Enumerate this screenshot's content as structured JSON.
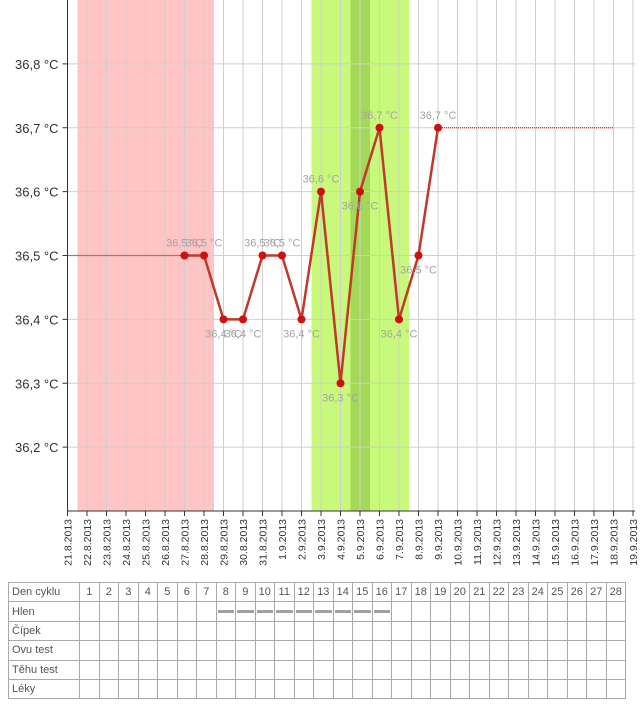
{
  "chart_data": {
    "type": "line",
    "title": "",
    "xlabel": "",
    "ylabel": "",
    "y_unit": "°C",
    "ylim": [
      36.1,
      36.9
    ],
    "y_ticks": [
      "36,2 °C",
      "36,3 °C",
      "36,4 °C",
      "36,5 °C",
      "36,6 °C",
      "36,7 °C",
      "36,8 °C"
    ],
    "y_tick_values": [
      36.2,
      36.3,
      36.4,
      36.5,
      36.6,
      36.7,
      36.8
    ],
    "x_labels": [
      "21.8.2013",
      "22.8.2013",
      "23.8.2013",
      "24.8.2013",
      "25.8.2013",
      "26.8.2013",
      "27.8.2013",
      "28.8.2013",
      "29.8.2013",
      "30.8.2013",
      "31.8.2013",
      "1.9.2013",
      "2.9.2013",
      "3.9.2013",
      "4.9.2013",
      "5.9.2013",
      "6.9.2013",
      "7.9.2013",
      "8.9.2013",
      "9.9.2013",
      "10.9.2013",
      "11.9.2013",
      "12.9.2013",
      "13.9.2013",
      "14.9.2013",
      "15.9.2013",
      "16.9.2013",
      "17.9.2013",
      "18.9.2013",
      "19.9.2013"
    ],
    "series": [
      {
        "color": "#c0392b",
        "points": [
          {
            "x": "27.8.2013",
            "y": 36.5,
            "label": "36,5 °C"
          },
          {
            "x": "28.8.2013",
            "y": 36.5,
            "label": "36,5 °C"
          },
          {
            "x": "29.8.2013",
            "y": 36.4,
            "label": "36,4 °C"
          },
          {
            "x": "30.8.2013",
            "y": 36.4,
            "label": "36,4 °C"
          },
          {
            "x": "31.8.2013",
            "y": 36.5,
            "label": "36,5 °C"
          },
          {
            "x": "1.9.2013",
            "y": 36.5,
            "label": "36,5 °C"
          },
          {
            "x": "2.9.2013",
            "y": 36.4,
            "label": "36,4 °C"
          },
          {
            "x": "3.9.2013",
            "y": 36.6,
            "label": "36,6 °C"
          },
          {
            "x": "4.9.2013",
            "y": 36.3,
            "label": "36,3 °C"
          },
          {
            "x": "5.9.2013",
            "y": 36.6,
            "label": "36,6 °C"
          },
          {
            "x": "6.9.2013",
            "y": 36.7,
            "label": "36,7 °C"
          },
          {
            "x": "7.9.2013",
            "y": 36.4,
            "label": "36,4 °C"
          },
          {
            "x": "8.9.2013",
            "y": 36.5,
            "label": "36,5 °C"
          },
          {
            "x": "9.9.2013",
            "y": 36.7,
            "label": "36,7 °C"
          }
        ]
      }
    ],
    "reference_lines": [
      {
        "from": "21.8.2013",
        "to": "27.8.2013",
        "y": 36.5,
        "color": "#8b1a1a"
      },
      {
        "from": "9.9.2013",
        "to": "18.9.2013",
        "y": 36.7,
        "color": "#c0392b"
      }
    ],
    "bands": [
      {
        "from": "21.8.2013",
        "to": "27.8.2013",
        "color": "#ffc4c4"
      },
      {
        "from": "2.9.2013",
        "to": "6.9.2013",
        "color": "#c8f97a"
      },
      {
        "from": "4.9.2013",
        "to": "4.9.2013",
        "color": "#a3d957"
      }
    ],
    "grid": true
  },
  "table": {
    "header_label": "Den cyklu",
    "days": [
      "1",
      "2",
      "3",
      "4",
      "5",
      "6",
      "7",
      "8",
      "9",
      "10",
      "11",
      "12",
      "13",
      "14",
      "15",
      "16",
      "17",
      "18",
      "19",
      "20",
      "21",
      "22",
      "23",
      "24",
      "25",
      "26",
      "27",
      "28"
    ],
    "rows": [
      {
        "label": "Hlen",
        "marked_days": [
          "8",
          "9",
          "10",
          "11",
          "12",
          "13",
          "14",
          "15",
          "16"
        ]
      },
      {
        "label": "Čípek",
        "marked_days": []
      },
      {
        "label": "Ovu test",
        "marked_days": []
      },
      {
        "label": "Těhu test",
        "marked_days": []
      },
      {
        "label": "Léky",
        "marked_days": []
      }
    ]
  }
}
